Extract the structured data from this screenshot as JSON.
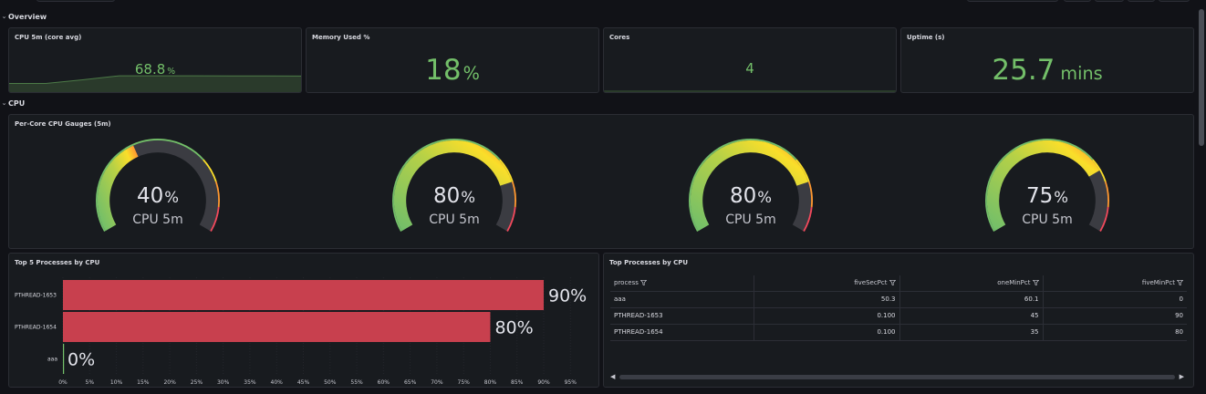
{
  "rows": [
    {
      "title": "Overview"
    },
    {
      "title": "CPU"
    }
  ],
  "overview": {
    "cpu": {
      "title": "CPU 5m (core avg)",
      "value": "68.8",
      "unit": "%",
      "sparkline": [
        56,
        56,
        62,
        68.8,
        68.8,
        68.8,
        68.6,
        68.4,
        68.3
      ]
    },
    "memory": {
      "title": "Memory Used %",
      "value": "18",
      "unit": "%"
    },
    "cores": {
      "title": "Cores",
      "value": "4",
      "unit": ""
    },
    "uptime": {
      "title": "Uptime (s)",
      "value": "25.7",
      "unit": "mins"
    }
  },
  "gauges_panel": {
    "title": "Per-Core CPU Gauges (5m)",
    "min": 0,
    "max": 100,
    "thresholds": [
      {
        "from": 0,
        "color": "#73bf69"
      },
      {
        "from": 70,
        "color": "#fade2a"
      },
      {
        "from": 80,
        "color": "#ff9830"
      },
      {
        "from": 90,
        "color": "#f2495c"
      }
    ],
    "gauges": [
      {
        "value": 40,
        "display": "40",
        "unit": "%",
        "label": "CPU 5m"
      },
      {
        "value": 80,
        "display": "80",
        "unit": "%",
        "label": "CPU 5m"
      },
      {
        "value": 80,
        "display": "80",
        "unit": "%",
        "label": "CPU 5m"
      },
      {
        "value": 75,
        "display": "75",
        "unit": "%",
        "label": "CPU 5m"
      }
    ]
  },
  "chart_data": {
    "type": "bar",
    "orientation": "horizontal",
    "title": "Top 5 Processes by CPU",
    "categories": [
      "PTHREAD-1653",
      "PTHREAD-1654",
      "aaa"
    ],
    "values": [
      90,
      80,
      0
    ],
    "labels": [
      "90%",
      "80%",
      "0%"
    ],
    "xlim": [
      0,
      97
    ],
    "xticks": [
      "0%",
      "5%",
      "10%",
      "15%",
      "20%",
      "25%",
      "30%",
      "35%",
      "40%",
      "45%",
      "50%",
      "55%",
      "60%",
      "65%",
      "70%",
      "75%",
      "80%",
      "85%",
      "90%",
      "95%"
    ],
    "bar_color": "#c8404e",
    "grid": true
  },
  "table_panel": {
    "title": "Top Processes by CPU",
    "columns": [
      "process",
      "fiveSecPct",
      "oneMinPct",
      "fiveMinPct"
    ],
    "rows": [
      [
        "aaa",
        "50.3",
        "60.1",
        "0"
      ],
      [
        "PTHREAD-1653",
        "0.100",
        "45",
        "90"
      ],
      [
        "PTHREAD-1654",
        "0.100",
        "35",
        "80"
      ]
    ],
    "scroll_left": "◀",
    "scroll_right": "▶"
  }
}
